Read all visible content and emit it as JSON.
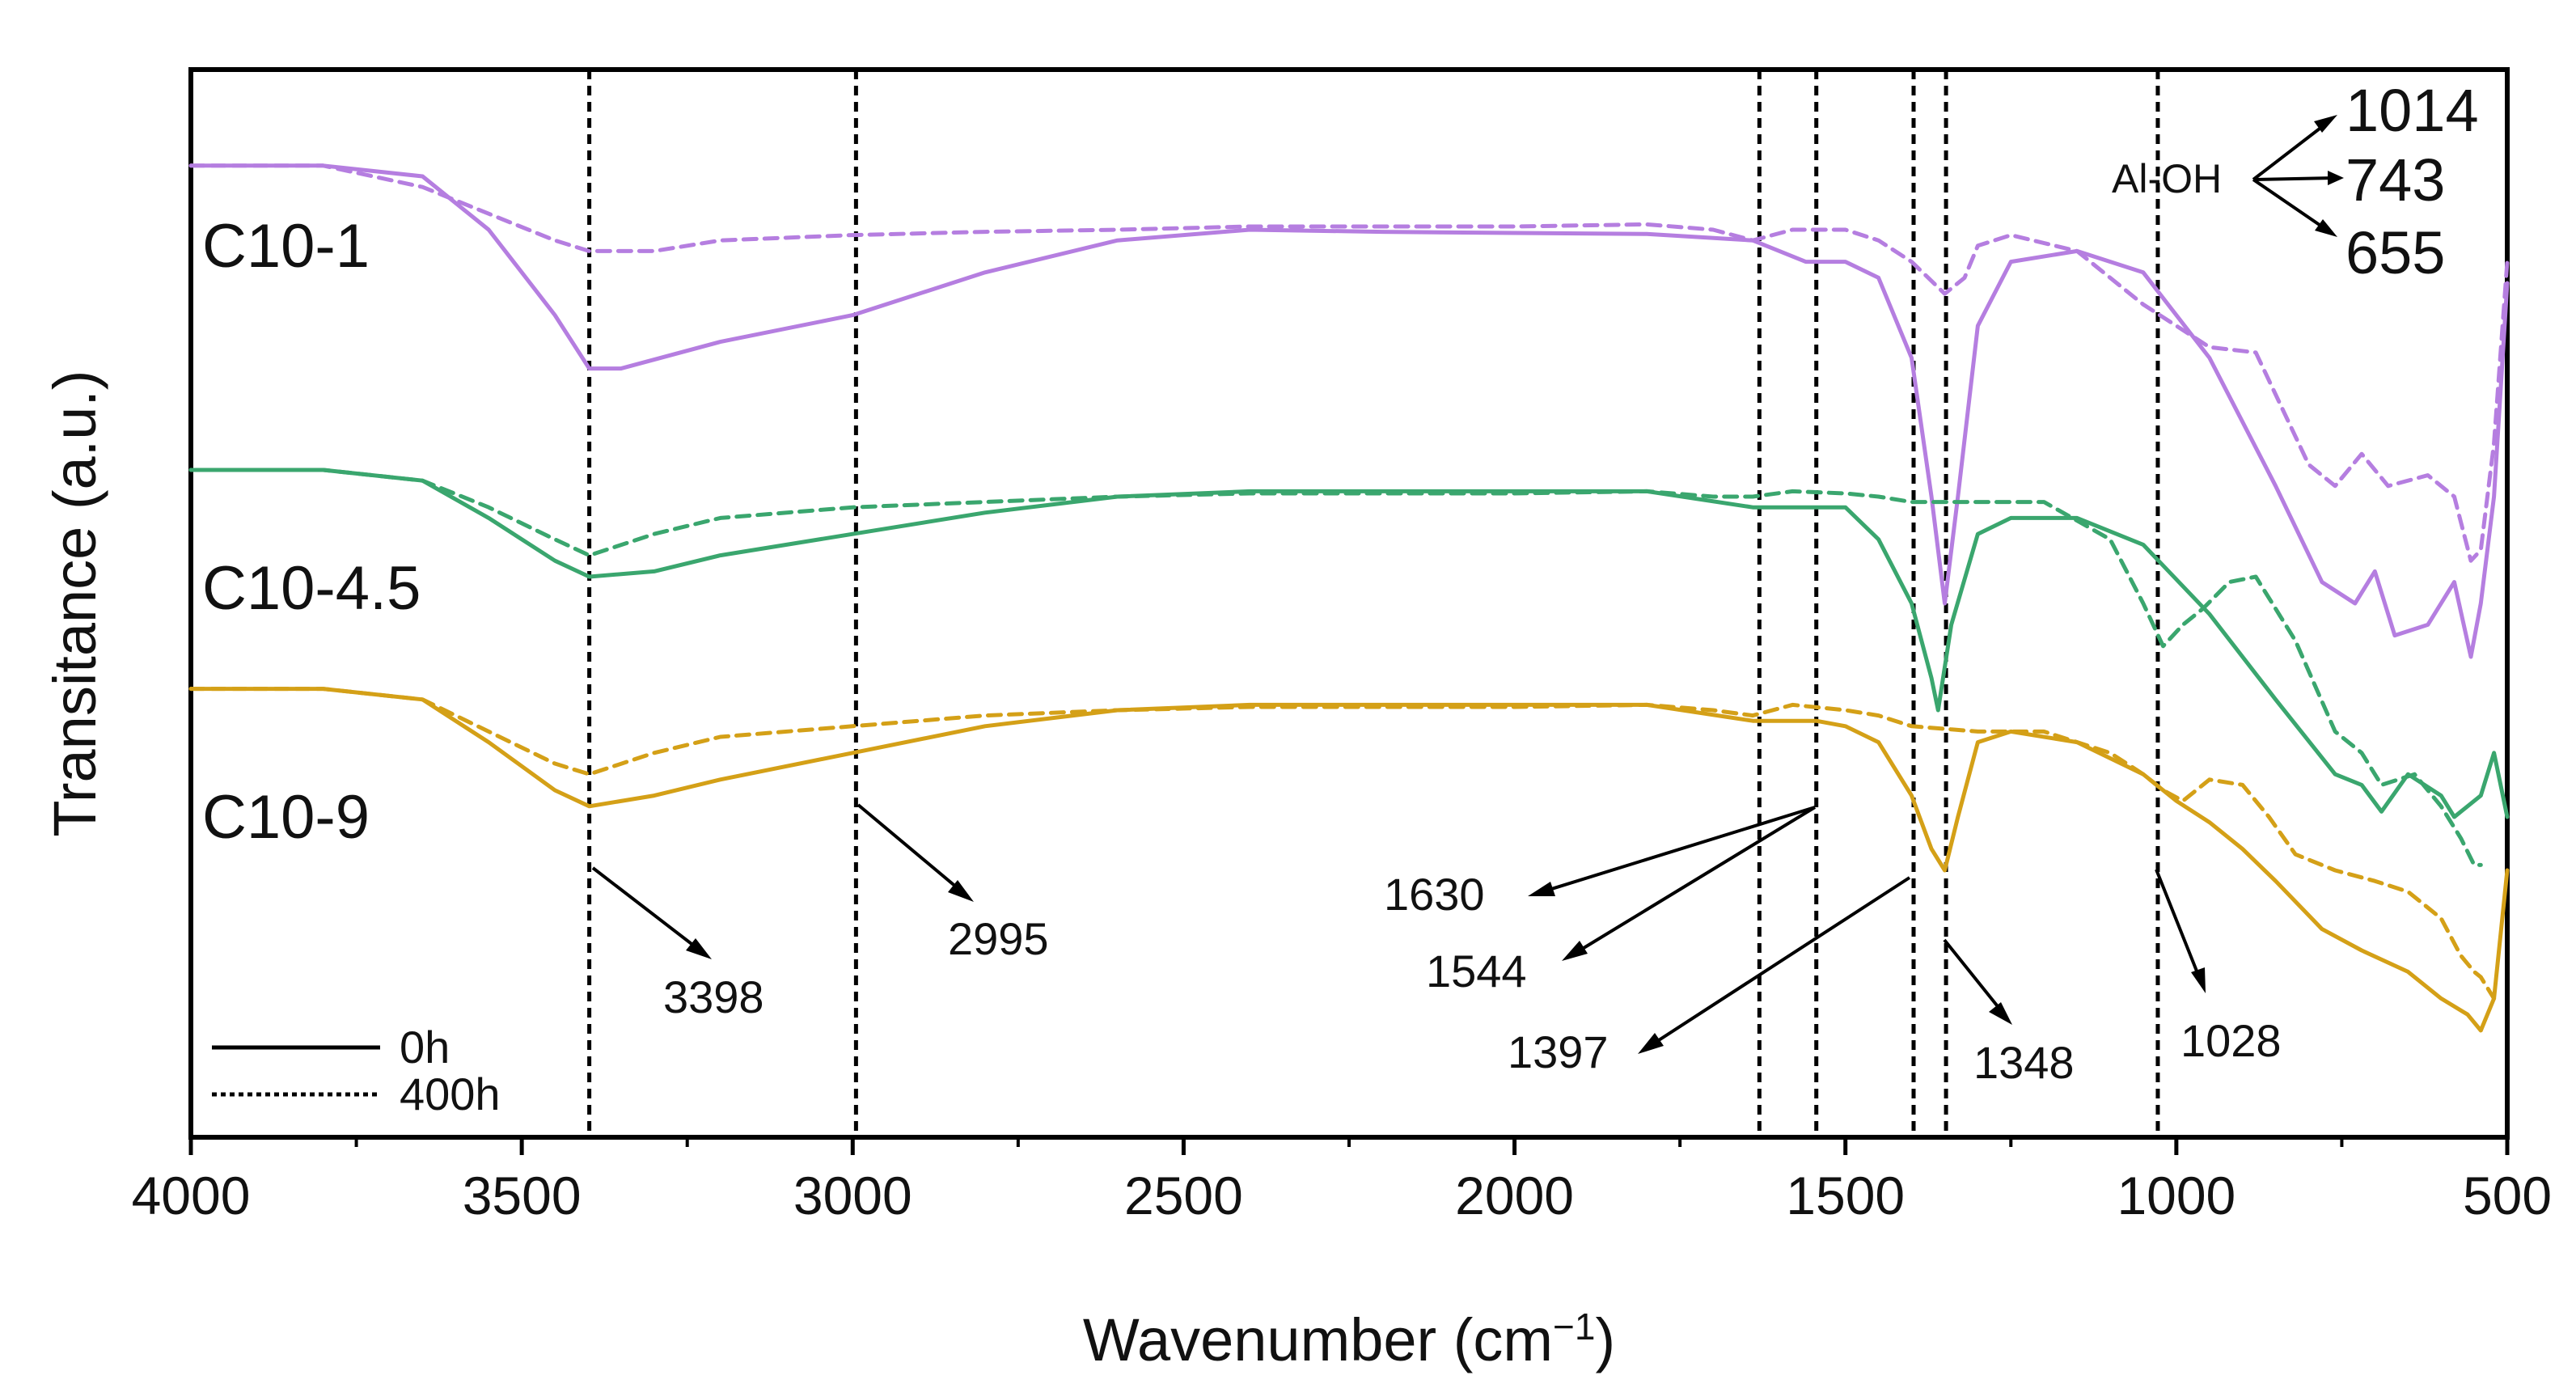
{
  "chart_data": {
    "type": "line",
    "xlabel": "Wavenumber (cm",
    "xlabel_sup": "−1",
    "xlabel_close": ")",
    "ylabel": "Transitance (a.u.)",
    "xlim": [
      4000,
      500
    ],
    "x_reversed": true,
    "x_ticks": [
      "4000",
      "3500",
      "3000",
      "2500",
      "2000",
      "1500",
      "1000",
      "500"
    ],
    "legend": {
      "placement": "bottom-left",
      "entries": [
        {
          "label": "0h",
          "style": "solid"
        },
        {
          "label": "400h",
          "style": "dashed"
        }
      ]
    },
    "colors": {
      "C10-1": "#b57ee0",
      "C10-4.5": "#3aa66e",
      "C10-9": "#d4a017"
    },
    "samples": [
      {
        "name": "C10-1",
        "color": "#b57ee0",
        "series": [
          {
            "condition": "0h",
            "x": [
              4000,
              3800,
              3650,
              3550,
              3450,
              3398,
              3350,
              3200,
              3000,
              2800,
              2600,
              2400,
              2200,
              2000,
              1800,
              1640,
              1560,
              1500,
              1450,
              1400,
              1370,
              1350,
              1330,
              1300,
              1250,
              1150,
              1050,
              950,
              850,
              780,
              730,
              700,
              670,
              620,
              580,
              555,
              540,
              520,
              500
            ],
            "y": [
              91.0,
              91.0,
              90.0,
              85.0,
              77.0,
              72.0,
              72.0,
              74.5,
              77.0,
              81.0,
              84.0,
              85.0,
              84.8,
              84.7,
              84.6,
              84.0,
              82.0,
              82.0,
              80.5,
              73.0,
              60.0,
              50.0,
              60.0,
              76.0,
              82.0,
              83.0,
              81.0,
              73.0,
              61.0,
              52.0,
              50.0,
              53.0,
              47.0,
              48.0,
              52.0,
              45.0,
              50.0,
              60.0,
              80.0
            ]
          },
          {
            "condition": "400h",
            "x": [
              4000,
              3800,
              3650,
              3550,
              3450,
              3398,
              3300,
              3200,
              3000,
              2800,
              2600,
              2400,
              2200,
              2000,
              1800,
              1700,
              1640,
              1580,
              1500,
              1450,
              1400,
              1350,
              1320,
              1300,
              1250,
              1150,
              1050,
              950,
              880,
              800,
              760,
              720,
              680,
              620,
              580,
              555,
              540,
              520,
              500
            ],
            "y": [
              91.0,
              91.0,
              89.0,
              86.5,
              84.0,
              83.0,
              83.0,
              84.0,
              84.5,
              84.8,
              85.0,
              85.3,
              85.3,
              85.3,
              85.5,
              85.0,
              84.0,
              85.0,
              85.0,
              84.0,
              82.0,
              79.0,
              80.5,
              83.5,
              84.5,
              83.0,
              78.0,
              74.0,
              73.5,
              63.0,
              61.0,
              64.0,
              61.0,
              62.0,
              60.0,
              54.0,
              55.0,
              65.0,
              82.0
            ]
          }
        ]
      },
      {
        "name": "C10-4.5",
        "color": "#3aa66e",
        "series": [
          {
            "condition": "0h",
            "x": [
              4000,
              3800,
              3650,
              3550,
              3450,
              3398,
              3300,
              3200,
              3000,
              2800,
              2600,
              2400,
              2200,
              2000,
              1800,
              1640,
              1560,
              1500,
              1450,
              1400,
              1370,
              1360,
              1340,
              1300,
              1250,
              1150,
              1050,
              950,
              850,
              760,
              720,
              690,
              650,
              600,
              580,
              560,
              540,
              520,
              500
            ],
            "y": [
              62.5,
              62.5,
              61.5,
              58.0,
              54.0,
              52.5,
              53.0,
              54.5,
              56.5,
              58.5,
              60.0,
              60.5,
              60.5,
              60.5,
              60.5,
              59.0,
              59.0,
              59.0,
              56.0,
              50.0,
              43.0,
              40.0,
              48.0,
              56.5,
              58.0,
              58.0,
              55.5,
              49.0,
              41.0,
              34.0,
              33.0,
              30.5,
              34.0,
              32.0,
              30.0,
              31.0,
              32.0,
              36.0,
              30.0
            ]
          },
          {
            "condition": "400h",
            "x": [
              4000,
              3800,
              3650,
              3550,
              3450,
              3398,
              3300,
              3200,
              3000,
              2800,
              2600,
              2400,
              2200,
              2000,
              1800,
              1700,
              1640,
              1580,
              1500,
              1450,
              1400,
              1300,
              1200,
              1100,
              1050,
              1020,
              990,
              960,
              920,
              880,
              820,
              760,
              720,
              690,
              640,
              600,
              570,
              550,
              540
            ],
            "y": [
              62.5,
              62.5,
              61.5,
              59.0,
              56.0,
              54.5,
              56.5,
              58.0,
              59.0,
              59.5,
              60.0,
              60.3,
              60.3,
              60.3,
              60.5,
              60.0,
              60.0,
              60.5,
              60.3,
              60.0,
              59.5,
              59.5,
              59.5,
              56.0,
              50.0,
              46.0,
              48.0,
              49.5,
              52.0,
              52.5,
              46.5,
              38.0,
              36.0,
              33.0,
              34.0,
              31.0,
              28.0,
              25.5,
              25.5
            ]
          }
        ]
      },
      {
        "name": "C10-9",
        "color": "#d4a017",
        "series": [
          {
            "condition": "0h",
            "x": [
              4000,
              3800,
              3650,
              3550,
              3450,
              3398,
              3300,
              3200,
              3000,
              2800,
              2600,
              2400,
              2200,
              2000,
              1800,
              1640,
              1544,
              1500,
              1450,
              1400,
              1370,
              1350,
              1330,
              1300,
              1250,
              1150,
              1050,
              1000,
              950,
              900,
              850,
              780,
              720,
              650,
              600,
              560,
              540,
              520,
              500
            ],
            "y": [
              42.0,
              42.0,
              41.0,
              37.0,
              32.5,
              31.0,
              32.0,
              33.5,
              36.0,
              38.5,
              40.0,
              40.5,
              40.5,
              40.5,
              40.5,
              39.0,
              39.0,
              38.5,
              37.0,
              32.0,
              27.0,
              25.0,
              30.0,
              37.0,
              38.0,
              37.0,
              34.0,
              31.5,
              29.5,
              27.0,
              24.0,
              19.5,
              17.5,
              15.5,
              13.0,
              11.5,
              10.0,
              13.0,
              25.0
            ]
          },
          {
            "condition": "400h",
            "x": [
              4000,
              3800,
              3650,
              3550,
              3450,
              3398,
              3300,
              3200,
              3000,
              2800,
              2600,
              2400,
              2200,
              2000,
              1800,
              1700,
              1640,
              1580,
              1500,
              1450,
              1400,
              1300,
              1200,
              1100,
              1050,
              1020,
              990,
              950,
              900,
              860,
              820,
              760,
              700,
              650,
              600,
              570,
              550,
              540,
              520
            ],
            "y": [
              42.0,
              42.0,
              41.0,
              38.0,
              35.0,
              34.0,
              36.0,
              37.5,
              38.5,
              39.5,
              40.0,
              40.3,
              40.3,
              40.3,
              40.5,
              40.0,
              39.5,
              40.5,
              40.0,
              39.5,
              38.5,
              38.0,
              38.0,
              36.0,
              34.0,
              32.5,
              31.5,
              33.5,
              33.0,
              30.0,
              26.5,
              25.0,
              24.0,
              23.0,
              20.5,
              17.0,
              15.5,
              15.0,
              13.0
            ]
          }
        ]
      }
    ],
    "reference_lines": [
      3398,
      2995,
      1630,
      1544,
      1397,
      1348,
      1028
    ],
    "peak_labels": [
      "3398",
      "2995",
      "1630",
      "1544",
      "1397",
      "1348",
      "1028"
    ],
    "aloh": {
      "label": "Al-OH",
      "values": [
        "1014",
        "743",
        "655"
      ]
    }
  }
}
